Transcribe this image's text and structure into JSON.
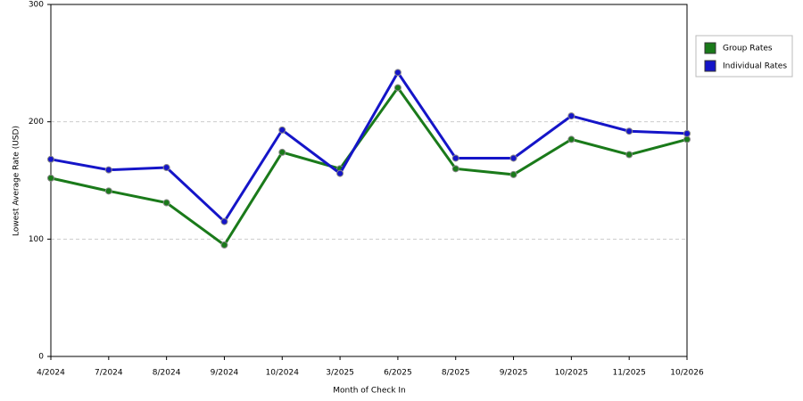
{
  "chart_data": {
    "type": "line",
    "x_label": "Month of Check In",
    "y_label": "Lowest Average Rate (USD)",
    "categories": [
      "4/2024",
      "7/2024",
      "8/2024",
      "9/2024",
      "10/2024",
      "3/2025",
      "6/2025",
      "8/2025",
      "9/2025",
      "10/2025",
      "11/2025",
      "10/2026"
    ],
    "series": [
      {
        "name": "Group Rates",
        "color": "#1a7a1a",
        "values": [
          152,
          141,
          131,
          95,
          174,
          160,
          229,
          160,
          155,
          185,
          172,
          185
        ]
      },
      {
        "name": "Individual Rates",
        "color": "#1515c8",
        "values": [
          168,
          159,
          161,
          115,
          193,
          156,
          242,
          169,
          169,
          205,
          192,
          190
        ]
      }
    ],
    "ylim": [
      0,
      300
    ],
    "yticks": [
      0,
      100,
      200,
      300
    ],
    "grid": true,
    "legend": "right"
  }
}
